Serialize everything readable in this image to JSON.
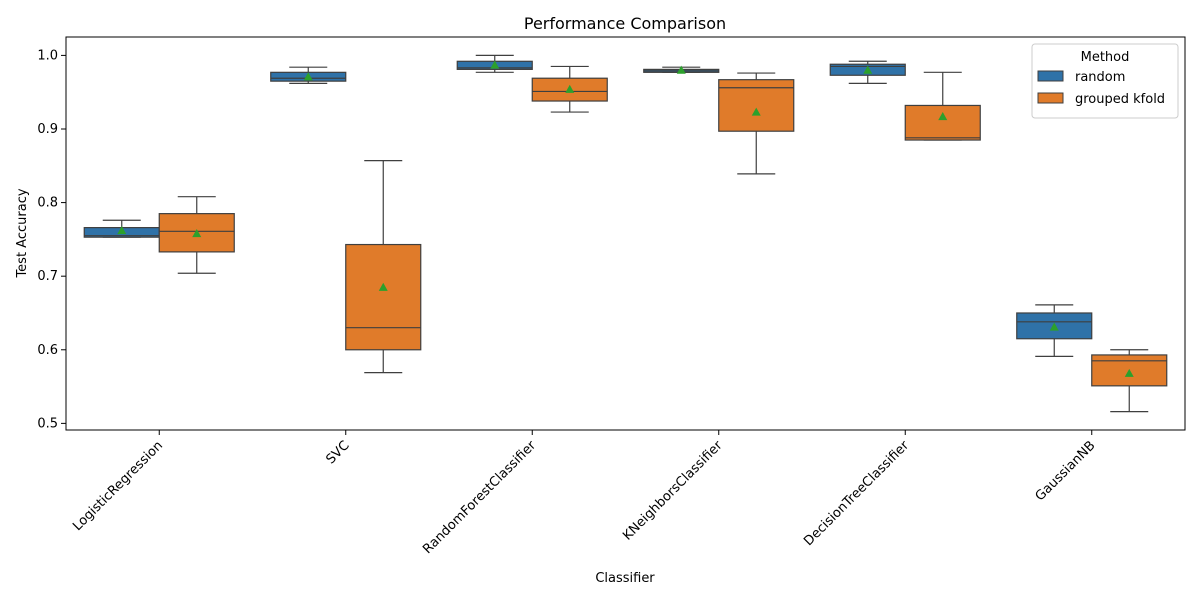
{
  "chart_data": {
    "type": "box",
    "title": "Performance Comparison",
    "xlabel": "Classifier",
    "ylabel": "Test Accuracy",
    "ylim": [
      0.491,
      1.025
    ],
    "yticks": [
      "0.5",
      "0.6",
      "0.7",
      "0.8",
      "0.9",
      "1.0"
    ],
    "ytick_values": [
      0.5,
      0.6,
      0.7,
      0.8,
      0.9,
      1.0
    ],
    "categories": [
      "LogisticRegression",
      "SVC",
      "RandomForestClassifier",
      "KNeighborsClassifier",
      "DecisionTreeClassifier",
      "GaussianNB"
    ],
    "legend": {
      "title": "Method",
      "placement": "top-right"
    },
    "grid": false,
    "series": [
      {
        "name": "random",
        "color": "#2f72a8",
        "boxes": [
          {
            "whisker_low": 0.753,
            "q1": 0.753,
            "median": 0.755,
            "q3": 0.766,
            "whisker_high": 0.776,
            "mean": 0.762
          },
          {
            "whisker_low": 0.962,
            "q1": 0.965,
            "median": 0.969,
            "q3": 0.977,
            "whisker_high": 0.984,
            "mean": 0.971
          },
          {
            "whisker_low": 0.977,
            "q1": 0.981,
            "median": 0.983,
            "q3": 0.992,
            "whisker_high": 1.0,
            "mean": 0.987
          },
          {
            "whisker_low": 0.977,
            "q1": 0.977,
            "median": 0.979,
            "q3": 0.981,
            "whisker_high": 0.984,
            "mean": 0.98
          },
          {
            "whisker_low": 0.962,
            "q1": 0.973,
            "median": 0.985,
            "q3": 0.988,
            "whisker_high": 0.992,
            "mean": 0.98
          },
          {
            "whisker_low": 0.591,
            "q1": 0.615,
            "median": 0.638,
            "q3": 0.65,
            "whisker_high": 0.661,
            "mean": 0.631
          }
        ]
      },
      {
        "name": "grouped kfold",
        "color": "#e07b2a",
        "boxes": [
          {
            "whisker_low": 0.704,
            "q1": 0.733,
            "median": 0.761,
            "q3": 0.785,
            "whisker_high": 0.808,
            "mean": 0.758
          },
          {
            "whisker_low": 0.569,
            "q1": 0.6,
            "median": 0.63,
            "q3": 0.743,
            "whisker_high": 0.857,
            "mean": 0.685
          },
          {
            "whisker_low": 0.923,
            "q1": 0.938,
            "median": 0.951,
            "q3": 0.969,
            "whisker_high": 0.985,
            "mean": 0.954
          },
          {
            "whisker_low": 0.839,
            "q1": 0.897,
            "median": 0.956,
            "q3": 0.967,
            "whisker_high": 0.976,
            "mean": 0.923
          },
          {
            "whisker_low": 0.885,
            "q1": 0.885,
            "median": 0.888,
            "q3": 0.932,
            "whisker_high": 0.977,
            "mean": 0.917
          },
          {
            "whisker_low": 0.516,
            "q1": 0.551,
            "median": 0.585,
            "q3": 0.593,
            "whisker_high": 0.6,
            "mean": 0.568
          }
        ]
      }
    ],
    "mean_marker_color": "#2ca02c",
    "line_color": "#3f3f3f"
  }
}
